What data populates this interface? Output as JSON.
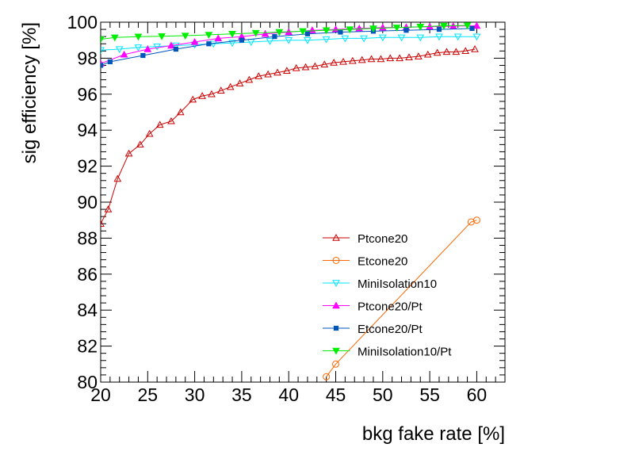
{
  "chart_data": {
    "type": "line",
    "title": "",
    "xlabel": "bkg fake rate [%]",
    "ylabel": "sig efficiency [%]",
    "xlim": [
      20,
      63
    ],
    "ylim": [
      80,
      100
    ],
    "xticks": [
      20,
      25,
      30,
      35,
      40,
      45,
      50,
      55,
      60
    ],
    "xtick_labels": [
      "20",
      "25",
      "30",
      "35",
      "40",
      "45",
      "50",
      "55",
      "60"
    ],
    "yticks": [
      80,
      82,
      84,
      86,
      88,
      90,
      92,
      94,
      96,
      98,
      100
    ],
    "ytick_labels": [
      "80",
      "82",
      "84",
      "86",
      "88",
      "90",
      "92",
      "94",
      "96",
      "98",
      "100"
    ],
    "grid": false,
    "legend_position": "bottom-right",
    "series": [
      {
        "name": "Ptcone20",
        "color": "#cc0000",
        "marker": "triangle-up-open",
        "points": [
          [
            20.0,
            88.8
          ],
          [
            20.8,
            89.6
          ],
          [
            21.8,
            91.3
          ],
          [
            23.0,
            92.7
          ],
          [
            24.2,
            93.2
          ],
          [
            25.2,
            93.8
          ],
          [
            26.3,
            94.3
          ],
          [
            27.5,
            94.5
          ],
          [
            28.5,
            95.0
          ],
          [
            29.8,
            95.7
          ],
          [
            30.8,
            95.9
          ],
          [
            31.8,
            96.0
          ],
          [
            32.8,
            96.2
          ],
          [
            33.8,
            96.4
          ],
          [
            34.8,
            96.6
          ],
          [
            35.8,
            96.8
          ],
          [
            36.8,
            97.0
          ],
          [
            37.8,
            97.1
          ],
          [
            38.8,
            97.2
          ],
          [
            39.8,
            97.3
          ],
          [
            40.8,
            97.45
          ],
          [
            41.8,
            97.5
          ],
          [
            42.8,
            97.55
          ],
          [
            43.8,
            97.65
          ],
          [
            44.8,
            97.75
          ],
          [
            45.8,
            97.8
          ],
          [
            46.8,
            97.85
          ],
          [
            47.8,
            97.9
          ],
          [
            48.8,
            97.95
          ],
          [
            49.8,
            97.95
          ],
          [
            50.8,
            98.0
          ],
          [
            51.8,
            98.0
          ],
          [
            52.8,
            98.05
          ],
          [
            53.8,
            98.1
          ],
          [
            54.8,
            98.2
          ],
          [
            55.8,
            98.3
          ],
          [
            56.8,
            98.35
          ],
          [
            57.8,
            98.35
          ],
          [
            58.8,
            98.4
          ],
          [
            59.8,
            98.5
          ]
        ]
      },
      {
        "name": "Etcone20",
        "color": "#ff6600",
        "marker": "circle-open",
        "points": [
          [
            44.0,
            80.3
          ],
          [
            45.0,
            81.0
          ],
          [
            59.4,
            88.9
          ],
          [
            60.0,
            89.0
          ]
        ]
      },
      {
        "name": "MiniIsolation10",
        "color": "#00e5ff",
        "marker": "triangle-down-open",
        "points": [
          [
            20.0,
            98.45
          ],
          [
            22.0,
            98.5
          ],
          [
            24.0,
            98.6
          ],
          [
            26.0,
            98.65
          ],
          [
            28.0,
            98.7
          ],
          [
            30.0,
            98.75
          ],
          [
            32.0,
            98.8
          ],
          [
            34.0,
            98.85
          ],
          [
            36.0,
            98.9
          ],
          [
            38.0,
            98.95
          ],
          [
            40.0,
            99.0
          ],
          [
            42.0,
            99.0
          ],
          [
            44.0,
            99.05
          ],
          [
            46.0,
            99.1
          ],
          [
            48.0,
            99.1
          ],
          [
            50.0,
            99.15
          ],
          [
            52.0,
            99.15
          ],
          [
            54.0,
            99.15
          ],
          [
            56.0,
            99.2
          ],
          [
            58.0,
            99.2
          ],
          [
            60.0,
            99.2
          ]
        ]
      },
      {
        "name": "Ptcone20/Pt",
        "color": "#ff00ff",
        "marker": "triangle-up-filled",
        "points": [
          [
            20.0,
            97.7
          ],
          [
            22.5,
            98.2
          ],
          [
            25.0,
            98.5
          ],
          [
            27.5,
            98.7
          ],
          [
            30.0,
            98.9
          ],
          [
            32.5,
            99.1
          ],
          [
            35.0,
            99.2
          ],
          [
            37.5,
            99.35
          ],
          [
            40.0,
            99.45
          ],
          [
            42.5,
            99.55
          ],
          [
            45.0,
            99.6
          ],
          [
            47.5,
            99.65
          ],
          [
            50.0,
            99.7
          ],
          [
            52.5,
            99.72
          ],
          [
            55.0,
            99.75
          ],
          [
            57.5,
            99.78
          ],
          [
            60.0,
            99.8
          ]
        ]
      },
      {
        "name": "Etcone20/Pt",
        "color": "#0055bb",
        "marker": "square-filled",
        "points": [
          [
            20.0,
            97.6
          ],
          [
            21.0,
            97.8
          ],
          [
            24.5,
            98.15
          ],
          [
            28.0,
            98.5
          ],
          [
            31.5,
            98.8
          ],
          [
            35.0,
            99.0
          ],
          [
            38.5,
            99.2
          ],
          [
            42.0,
            99.35
          ],
          [
            45.5,
            99.45
          ],
          [
            49.0,
            99.5
          ],
          [
            52.5,
            99.55
          ],
          [
            56.0,
            99.6
          ],
          [
            59.5,
            99.65
          ]
        ]
      },
      {
        "name": "MiniIsolation10/Pt",
        "color": "#00ee00",
        "marker": "triangle-down-filled",
        "points": [
          [
            20.0,
            99.05
          ],
          [
            21.5,
            99.15
          ],
          [
            24.0,
            99.2
          ],
          [
            26.5,
            99.22
          ],
          [
            29.0,
            99.25
          ],
          [
            31.5,
            99.3
          ],
          [
            34.0,
            99.35
          ],
          [
            36.5,
            99.4
          ],
          [
            39.0,
            99.45
          ],
          [
            41.5,
            99.5
          ],
          [
            44.0,
            99.55
          ],
          [
            46.5,
            99.6
          ],
          [
            49.0,
            99.65
          ],
          [
            51.5,
            99.7
          ],
          [
            54.0,
            99.75
          ],
          [
            56.5,
            99.8
          ],
          [
            59.0,
            99.82
          ]
        ]
      }
    ]
  }
}
